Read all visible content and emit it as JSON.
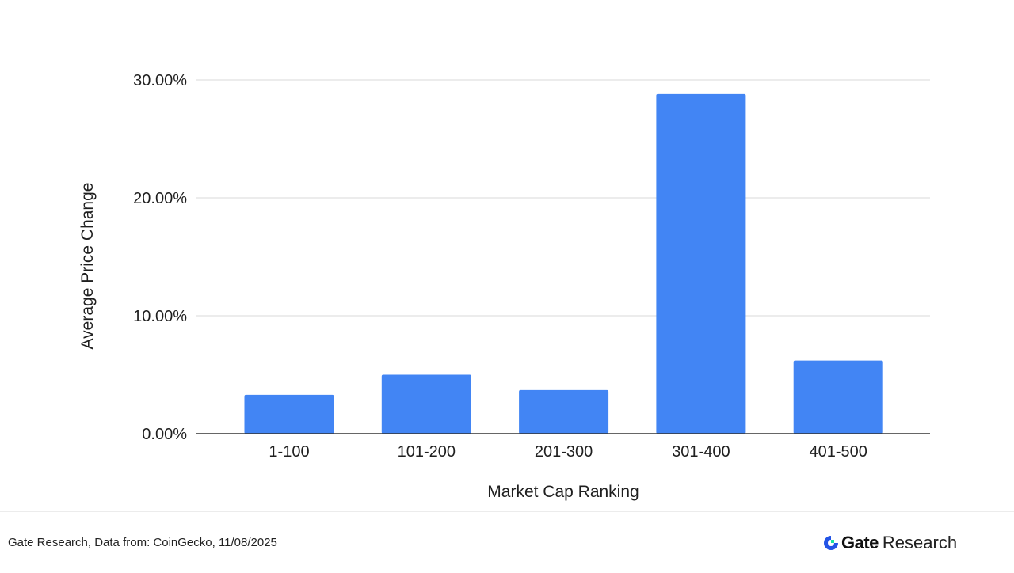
{
  "chart_data": {
    "type": "bar",
    "title": "",
    "xlabel": "Market Cap Ranking",
    "ylabel": "Average Price Change",
    "categories": [
      "1-100",
      "101-200",
      "201-300",
      "301-400",
      "401-500"
    ],
    "values": [
      3.3,
      5.0,
      3.7,
      28.8,
      6.2
    ],
    "yticks": [
      0,
      10,
      20,
      30
    ],
    "ytick_labels": [
      "0.00%",
      "10.00%",
      "20.00%",
      "30.00%"
    ],
    "ylim": [
      0,
      30
    ],
    "grid": true,
    "legend": "none",
    "bar_color": "#4285F4",
    "grid_color": "#d9d9d9",
    "axis_color": "#333333"
  },
  "footer": {
    "source": "Gate Research, Data from: CoinGecko, 11/08/2025"
  },
  "brand": {
    "name": "Gate",
    "sub": "Research",
    "logo_icon": "gate-logo-icon",
    "logo_color": "#2354E6"
  }
}
